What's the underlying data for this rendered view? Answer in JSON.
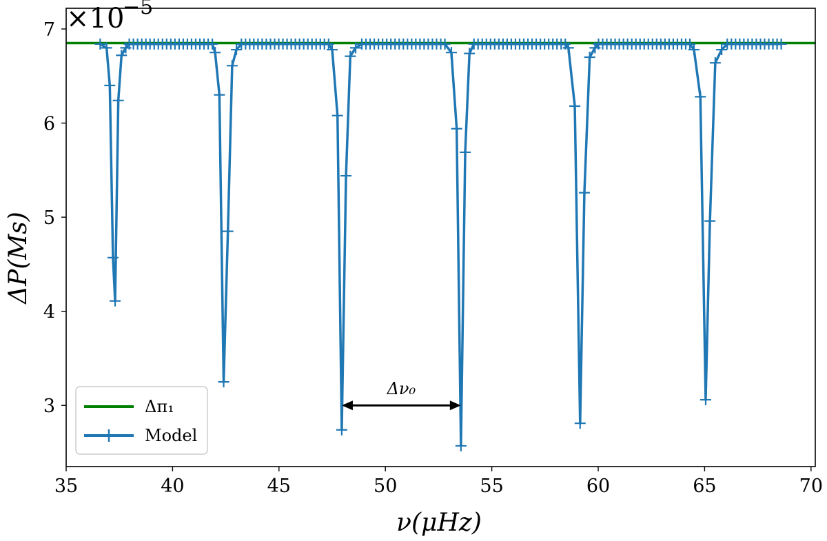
{
  "chart_data": {
    "type": "line",
    "xlabel": "ν(μHz)",
    "ylabel": "ΔP(Ms)",
    "y_scale_prefix": "×10",
    "y_scale_exponent": "−5",
    "xlim": [
      35,
      70.2
    ],
    "ylim": [
      2.35,
      7.22
    ],
    "xticks": [
      35,
      40,
      45,
      50,
      55,
      60,
      65,
      70
    ],
    "yticks": [
      3,
      4,
      5,
      6,
      7
    ],
    "grid": false,
    "legend_position": "lower-left",
    "series": [
      {
        "name": "Δπ₁",
        "color": "#008000",
        "marker": "none",
        "x": [
          35,
          70.2
        ],
        "y": [
          6.85,
          6.85
        ]
      },
      {
        "name": "Model",
        "color": "#1f77b4",
        "marker": "+",
        "base_value": 6.84,
        "x_start": 36.6,
        "x_end": 68.6,
        "n_points": 165,
        "dips": [
          {
            "x": [
              36.9,
              37.05,
              37.2,
              37.3,
              37.45,
              37.6,
              37.8
            ],
            "y": [
              6.8,
              6.4,
              4.57,
              4.11,
              6.24,
              6.72,
              6.8
            ]
          },
          {
            "x": [
              42.0,
              42.2,
              42.4,
              42.6,
              42.8,
              43.0
            ],
            "y": [
              6.75,
              6.3,
              3.25,
              4.85,
              6.61,
              6.78
            ]
          },
          {
            "x": [
              47.5,
              47.75,
              47.95,
              48.15,
              48.35,
              48.6
            ],
            "y": [
              6.78,
              6.08,
              2.74,
              5.44,
              6.71,
              6.8
            ]
          },
          {
            "x": [
              53.1,
              53.35,
              53.55,
              53.75,
              53.95
            ],
            "y": [
              6.75,
              5.94,
              2.57,
              5.69,
              6.74
            ]
          },
          {
            "x": [
              58.6,
              58.9,
              59.15,
              59.35,
              59.6,
              59.85
            ],
            "y": [
              6.8,
              6.18,
              2.81,
              5.26,
              6.7,
              6.8
            ]
          },
          {
            "x": [
              64.5,
              64.8,
              65.05,
              65.25,
              65.5,
              65.8
            ],
            "y": [
              6.78,
              6.28,
              3.06,
              4.96,
              6.64,
              6.78
            ]
          }
        ]
      }
    ],
    "annotations": [
      {
        "text": "Δν₀",
        "x1": 47.95,
        "x2": 53.55,
        "y": 3.0,
        "type": "double-arrow"
      }
    ]
  }
}
